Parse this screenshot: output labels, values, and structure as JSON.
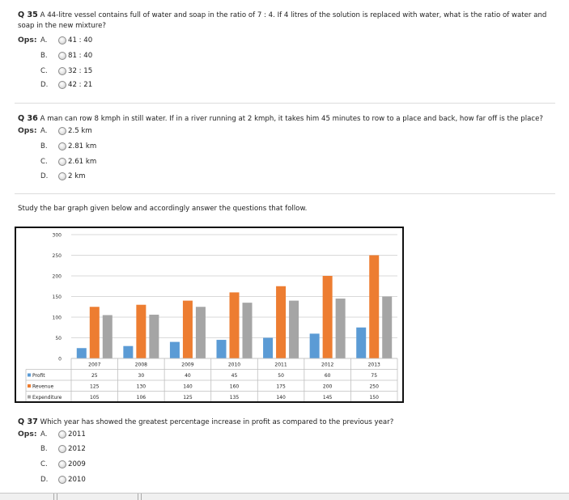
{
  "q35": {
    "number": "Q 35",
    "text": "A 44-litre vessel contains full of water and soap in the ratio of 7 : 4. If 4 litres of the solution is replaced with water, what is the ratio of water and soap in the new mixture?",
    "ops_label": "Ops:",
    "options": [
      {
        "letter": "A.",
        "text": "41 : 40"
      },
      {
        "letter": "B.",
        "text": "81 : 40"
      },
      {
        "letter": "C.",
        "text": "32 : 15"
      },
      {
        "letter": "D.",
        "text": "42 : 21"
      }
    ]
  },
  "q36": {
    "number": "Q 36",
    "text": "A man can row 8 kmph in still water. If in a river running at 2 kmph, it takes him 45 minutes to row to a place and back, how far off is the place?",
    "ops_label": "Ops:",
    "options": [
      {
        "letter": "A.",
        "text": "2.5 km"
      },
      {
        "letter": "B.",
        "text": "2.81 km"
      },
      {
        "letter": "C.",
        "text": "2.61 km"
      },
      {
        "letter": "D.",
        "text": "2 km"
      }
    ]
  },
  "intro": "Study the bar graph given below and accordingly answer the questions that follow.",
  "chart_data": {
    "type": "bar",
    "categories": [
      "2007",
      "2008",
      "2009",
      "2010",
      "2011",
      "2012",
      "2013"
    ],
    "series": [
      {
        "name": "Profit",
        "values": [
          25,
          30,
          40,
          45,
          50,
          60,
          75
        ],
        "color": "#5b9bd5"
      },
      {
        "name": "Revenue",
        "values": [
          125,
          130,
          140,
          160,
          175,
          200,
          250
        ],
        "color": "#ed7d31"
      },
      {
        "name": "Expenditure",
        "values": [
          105,
          106,
          125,
          135,
          140,
          145,
          150
        ],
        "color": "#a5a5a5"
      }
    ],
    "y_ticks": [
      "300",
      "250",
      "200",
      "150",
      "100",
      "50",
      "0"
    ],
    "ylim": [
      0,
      300
    ],
    "legend": "data-table-below",
    "grid": true
  },
  "q37": {
    "number": "Q 37",
    "text": "Which year has showed the greatest percentage increase in profit as compared to the previous year?",
    "ops_label": "Ops:",
    "options": [
      {
        "letter": "A.",
        "text": "2011"
      },
      {
        "letter": "B.",
        "text": "2012"
      },
      {
        "letter": "C.",
        "text": "2009"
      },
      {
        "letter": "D.",
        "text": "2010"
      }
    ]
  }
}
